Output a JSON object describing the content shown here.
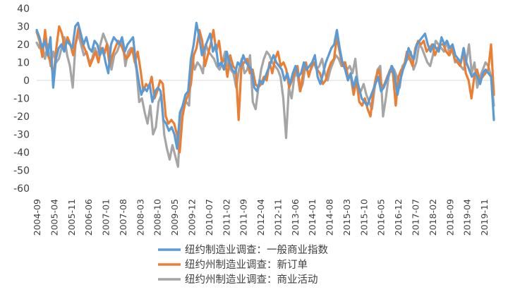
{
  "chart_data": {
    "type": "line",
    "ylim": [
      -60,
      40
    ],
    "y_ticks": [
      40,
      30,
      20,
      10,
      0,
      -10,
      -20,
      -30,
      -40,
      -50,
      -60
    ],
    "x_labels": [
      "2004-09",
      "2005-04",
      "2005-11",
      "2006-06",
      "2007-01",
      "2007-08",
      "2008-03",
      "2008-10",
      "2009-05",
      "2009-12",
      "2010-07",
      "2011-02",
      "2011-09",
      "2012-04",
      "2012-11",
      "2013-06",
      "2014-01",
      "2014-08",
      "2015-03",
      "2015-10",
      "2016-05",
      "2016-12",
      "2017-07",
      "2018-02",
      "2018-09",
      "2019-04",
      "2019-11"
    ],
    "x_start": "2004-09",
    "x_end": "2020-03",
    "grid": false,
    "legend_position": "bottom",
    "series": [
      {
        "name": "纽约制造业调查：一般商业指数",
        "color": "#5b9bd5",
        "values": [
          28,
          24,
          18,
          22,
          14,
          24,
          -4,
          12,
          18,
          20,
          16,
          22,
          20,
          18,
          30,
          32,
          26,
          20,
          24,
          18,
          16,
          22,
          20,
          14,
          18,
          10,
          4,
          20,
          24,
          22,
          20,
          24,
          16,
          20,
          22,
          24,
          10,
          0,
          -8,
          -4,
          -6,
          -2,
          -12,
          -6,
          -4,
          -6,
          -22,
          -24,
          -28,
          -26,
          -30,
          -38,
          -18,
          -14,
          -8,
          -6,
          12,
          20,
          32,
          24,
          14,
          18,
          22,
          26,
          16,
          20,
          8,
          10,
          6,
          16,
          10,
          6,
          4,
          10,
          8,
          14,
          10,
          8,
          6,
          -4,
          -6,
          0,
          -2,
          2,
          6,
          10,
          14,
          10,
          8,
          6,
          0,
          4,
          -2,
          4,
          8,
          2,
          4,
          10,
          6,
          8,
          10,
          14,
          2,
          -2,
          4,
          10,
          14,
          18,
          20,
          28,
          18,
          10,
          6,
          0,
          4,
          -4,
          2,
          -4,
          -10,
          -12,
          -14,
          -10,
          -6,
          -2,
          2,
          -6,
          -4,
          0,
          4,
          8,
          2,
          -8,
          0,
          6,
          10,
          18,
          14,
          12,
          20,
          22,
          24,
          26,
          20,
          16,
          20,
          18,
          16,
          24,
          20,
          22,
          18,
          20,
          14,
          12,
          10,
          18,
          10,
          6,
          2,
          4,
          2,
          -2,
          4,
          6,
          4,
          2,
          -22
        ]
      },
      {
        "name": "纽约州制造业调查：新订单",
        "color": "#ed7d31",
        "values": [
          27,
          22,
          13,
          28,
          14,
          10,
          2,
          18,
          30,
          26,
          18,
          24,
          20,
          14,
          22,
          30,
          22,
          18,
          14,
          8,
          12,
          16,
          10,
          18,
          14,
          20,
          8,
          14,
          18,
          22,
          20,
          16,
          12,
          14,
          18,
          10,
          16,
          6,
          -6,
          -2,
          -4,
          2,
          -10,
          -6,
          0,
          -2,
          -20,
          -24,
          -22,
          -24,
          -30,
          -40,
          -20,
          -12,
          -8,
          -2,
          14,
          18,
          28,
          22,
          8,
          14,
          20,
          28,
          16,
          22,
          10,
          12,
          2,
          14,
          8,
          6,
          -22,
          8,
          10,
          12,
          4,
          6,
          -2,
          -4,
          -2,
          2,
          0,
          10,
          4,
          12,
          16,
          8,
          10,
          6,
          -4,
          0,
          4,
          8,
          -6,
          4,
          10,
          2,
          8,
          10,
          6,
          4,
          -2,
          0,
          6,
          10,
          12,
          24,
          16,
          8,
          10,
          2,
          2,
          -8,
          0,
          -12,
          -14,
          -10,
          -16,
          -20,
          -6,
          2,
          6,
          -4,
          -2,
          2,
          6,
          4,
          -14,
          2,
          6,
          8,
          16,
          12,
          8,
          18,
          22,
          20,
          22,
          16,
          18,
          20,
          14,
          18,
          20,
          20,
          16,
          14,
          18,
          12,
          10,
          8,
          16,
          4,
          0,
          -10,
          2,
          6,
          0,
          2,
          4,
          6,
          20,
          -8
        ]
      },
      {
        "name": "纽约州制造业调查：商业活动",
        "color": "#a5a5a5",
        "values": [
          21,
          18,
          20,
          12,
          20,
          8,
          16,
          10,
          12,
          18,
          24,
          14,
          8,
          -4,
          20,
          26,
          20,
          14,
          16,
          10,
          12,
          18,
          14,
          20,
          26,
          22,
          18,
          6,
          14,
          16,
          20,
          22,
          8,
          16,
          18,
          14,
          6,
          -12,
          -10,
          -18,
          -24,
          -14,
          -30,
          -26,
          -12,
          -8,
          -30,
          -38,
          -44,
          -36,
          -42,
          -48,
          -20,
          -14,
          -12,
          -14,
          14,
          6,
          10,
          8,
          4,
          20,
          16,
          14,
          12,
          8,
          6,
          10,
          16,
          8,
          6,
          4,
          -4,
          6,
          12,
          4,
          6,
          14,
          -12,
          -16,
          -4,
          6,
          12,
          16,
          14,
          10,
          8,
          6,
          2,
          -10,
          -32,
          -4,
          -10,
          2,
          4,
          -6,
          -2,
          8,
          4,
          6,
          10,
          6,
          8,
          12,
          4,
          0,
          6,
          10,
          14,
          12,
          8,
          10,
          6,
          8,
          4,
          12,
          -4,
          -6,
          -2,
          -8,
          -12,
          -16,
          -4,
          6,
          8,
          -20,
          -10,
          2,
          8,
          6,
          2,
          -4,
          8,
          10,
          12,
          16,
          6,
          10,
          20,
          18,
          14,
          10,
          8,
          14,
          22,
          20,
          18,
          16,
          22,
          14,
          18,
          10,
          12,
          8,
          6,
          10,
          20,
          4,
          10,
          -4,
          2,
          6,
          10,
          8,
          2,
          -14
        ]
      }
    ]
  }
}
